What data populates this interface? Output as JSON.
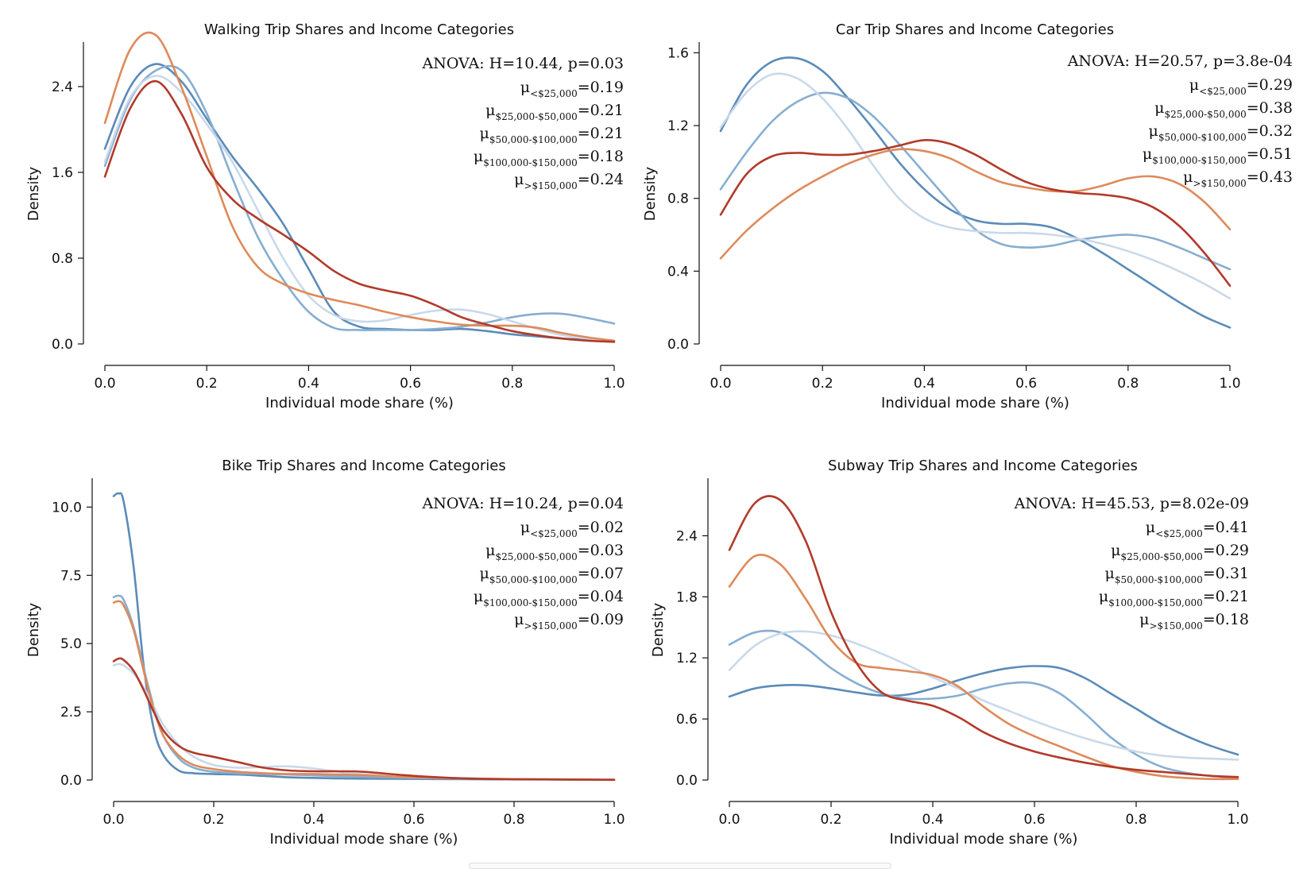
{
  "colors": {
    "lt25k": "#5b8bb8",
    "k25_50": "#86aed1",
    "k50_100": "#c9d9ea",
    "k100_150": "#de8a5a",
    "gt150k": "#b23a2a"
  },
  "chart_data": [
    {
      "type": "line",
      "title": "Walking Trip Shares and Income Categories",
      "xlabel": "Individual mode share (%)",
      "ylabel": "Density",
      "xlim": [
        0,
        1
      ],
      "ylim": [
        0,
        2.8
      ],
      "xticks": [
        "0.0",
        "0.2",
        "0.4",
        "0.6",
        "0.8",
        "1.0"
      ],
      "yticks": [
        {
          "v": 0,
          "label": "0.0"
        },
        {
          "v": 0.8,
          "label": "0.8"
        },
        {
          "v": 1.6,
          "label": "1.6"
        },
        {
          "v": 2.4,
          "label": "2.4"
        }
      ],
      "anova": "ANOVA: H=10.44, p=0.03",
      "means": [
        {
          "sub": "<$25,000",
          "value": "=0.19"
        },
        {
          "sub": "$25,000-$50,000",
          "value": "=0.21"
        },
        {
          "sub": "$50,000-$100,000",
          "value": "=0.21"
        },
        {
          "sub": "$100,000-$150,000",
          "value": "=0.18"
        },
        {
          "sub": ">$150,000",
          "value": "=0.24"
        }
      ],
      "x": [
        0,
        0.05,
        0.1,
        0.15,
        0.2,
        0.25,
        0.3,
        0.35,
        0.4,
        0.45,
        0.5,
        0.55,
        0.6,
        0.65,
        0.7,
        0.75,
        0.8,
        0.85,
        0.9,
        0.95,
        1.0
      ],
      "series": [
        {
          "name": "<$25,000",
          "color": "lt25k",
          "values": [
            1.82,
            2.4,
            2.61,
            2.45,
            2.1,
            1.75,
            1.45,
            1.12,
            0.7,
            0.3,
            0.16,
            0.14,
            0.13,
            0.13,
            0.14,
            0.12,
            0.09,
            0.07,
            0.05,
            0.04,
            0.03
          ]
        },
        {
          "name": "$25,000-$50,000",
          "color": "k25_50",
          "values": [
            1.66,
            2.28,
            2.55,
            2.55,
            2.15,
            1.55,
            1.0,
            0.6,
            0.3,
            0.15,
            0.13,
            0.13,
            0.13,
            0.14,
            0.16,
            0.2,
            0.25,
            0.28,
            0.28,
            0.24,
            0.19
          ]
        },
        {
          "name": "$50,000-$100,000",
          "color": "k50_100",
          "values": [
            1.7,
            2.3,
            2.5,
            2.35,
            2.05,
            1.7,
            1.25,
            0.8,
            0.45,
            0.27,
            0.21,
            0.22,
            0.27,
            0.31,
            0.32,
            0.28,
            0.21,
            0.14,
            0.08,
            0.05,
            0.03
          ]
        },
        {
          "name": "$100,000-$150,000",
          "color": "k100_150",
          "values": [
            2.06,
            2.75,
            2.88,
            2.4,
            1.75,
            1.1,
            0.72,
            0.56,
            0.47,
            0.41,
            0.36,
            0.3,
            0.25,
            0.21,
            0.18,
            0.17,
            0.17,
            0.15,
            0.1,
            0.06,
            0.03
          ]
        },
        {
          "name": ">$150,000",
          "color": "gt150k",
          "values": [
            1.56,
            2.2,
            2.45,
            2.15,
            1.65,
            1.35,
            1.17,
            1.02,
            0.86,
            0.68,
            0.56,
            0.5,
            0.45,
            0.36,
            0.25,
            0.18,
            0.12,
            0.08,
            0.05,
            0.03,
            0.02
          ]
        }
      ]
    },
    {
      "type": "line",
      "title": "Car Trip Shares and Income Categories",
      "xlabel": "Individual mode share (%)",
      "ylabel": "Density",
      "xlim": [
        0,
        1
      ],
      "ylim": [
        0,
        1.65
      ],
      "xticks": [
        "0.0",
        "0.2",
        "0.4",
        "0.6",
        "0.8",
        "1.0"
      ],
      "yticks": [
        {
          "v": 0,
          "label": "0.0"
        },
        {
          "v": 0.4,
          "label": "0.4"
        },
        {
          "v": 0.8,
          "label": "0.8"
        },
        {
          "v": 1.2,
          "label": "1.2"
        },
        {
          "v": 1.6,
          "label": "1.6"
        }
      ],
      "anova": "ANOVA: H=20.57, p=3.8e-04",
      "means": [
        {
          "sub": "<$25,000",
          "value": "=0.29"
        },
        {
          "sub": "$25,000-$50,000",
          "value": "=0.38"
        },
        {
          "sub": "$50,000-$100,000",
          "value": "=0.32"
        },
        {
          "sub": "$100,000-$150,000",
          "value": "=0.51"
        },
        {
          "sub": ">$150,000",
          "value": "=0.43"
        }
      ],
      "x": [
        0,
        0.05,
        0.1,
        0.15,
        0.2,
        0.25,
        0.3,
        0.35,
        0.4,
        0.45,
        0.5,
        0.55,
        0.6,
        0.65,
        0.7,
        0.75,
        0.8,
        0.85,
        0.9,
        0.95,
        1.0
      ],
      "series": [
        {
          "name": "<$25,000",
          "color": "lt25k",
          "values": [
            1.17,
            1.42,
            1.55,
            1.57,
            1.5,
            1.35,
            1.18,
            1.0,
            0.85,
            0.74,
            0.68,
            0.66,
            0.66,
            0.64,
            0.58,
            0.5,
            0.41,
            0.32,
            0.23,
            0.15,
            0.09
          ]
        },
        {
          "name": "$25,000-$50,000",
          "color": "k25_50",
          "values": [
            0.85,
            1.05,
            1.22,
            1.33,
            1.38,
            1.35,
            1.25,
            1.1,
            0.94,
            0.78,
            0.63,
            0.55,
            0.53,
            0.54,
            0.57,
            0.59,
            0.6,
            0.58,
            0.53,
            0.47,
            0.41
          ]
        },
        {
          "name": "$50,000-$100,000",
          "color": "k50_100",
          "values": [
            1.19,
            1.38,
            1.48,
            1.46,
            1.35,
            1.18,
            0.98,
            0.8,
            0.69,
            0.64,
            0.62,
            0.61,
            0.61,
            0.6,
            0.58,
            0.55,
            0.51,
            0.46,
            0.4,
            0.33,
            0.25
          ]
        },
        {
          "name": "$100,000-$150,000",
          "color": "k100_150",
          "values": [
            0.47,
            0.62,
            0.74,
            0.84,
            0.92,
            0.99,
            1.04,
            1.07,
            1.06,
            1.02,
            0.95,
            0.89,
            0.86,
            0.84,
            0.84,
            0.87,
            0.91,
            0.92,
            0.88,
            0.78,
            0.63
          ]
        },
        {
          "name": ">$150,000",
          "color": "gt150k",
          "values": [
            0.71,
            0.93,
            1.03,
            1.05,
            1.04,
            1.04,
            1.06,
            1.09,
            1.12,
            1.1,
            1.04,
            0.96,
            0.89,
            0.85,
            0.83,
            0.82,
            0.8,
            0.75,
            0.65,
            0.5,
            0.32
          ]
        }
      ]
    },
    {
      "type": "line",
      "title": "Bike Trip Shares and Income Categories",
      "xlabel": "Individual mode share (%)",
      "ylabel": "Density",
      "xlim": [
        0,
        1
      ],
      "ylim": [
        0,
        11
      ],
      "xticks": [
        "0.0",
        "0.2",
        "0.4",
        "0.6",
        "0.8",
        "1.0"
      ],
      "yticks": [
        {
          "v": 0,
          "label": "0.0"
        },
        {
          "v": 2.5,
          "label": "2.5"
        },
        {
          "v": 5,
          "label": "5.0"
        },
        {
          "v": 7.5,
          "label": "7.5"
        },
        {
          "v": 10,
          "label": "10.0"
        }
      ],
      "anova": "ANOVA: H=10.24, p=0.04",
      "means": [
        {
          "sub": "<$25,000",
          "value": "=0.02"
        },
        {
          "sub": "$25,000-$50,000",
          "value": "=0.03"
        },
        {
          "sub": "$50,000-$100,000",
          "value": "=0.07"
        },
        {
          "sub": "$100,000-$150,000",
          "value": "=0.04"
        },
        {
          "sub": ">$150,000",
          "value": "=0.09"
        }
      ],
      "x": [
        0,
        0.01,
        0.02,
        0.04,
        0.06,
        0.08,
        0.1,
        0.13,
        0.16,
        0.2,
        0.25,
        0.3,
        0.35,
        0.4,
        0.45,
        0.5,
        0.6,
        0.7,
        0.8,
        0.9,
        1.0
      ],
      "series": [
        {
          "name": "<$25,000",
          "color": "lt25k",
          "values": [
            10.4,
            10.5,
            10.2,
            7.8,
            4.2,
            1.9,
            0.9,
            0.35,
            0.25,
            0.22,
            0.2,
            0.15,
            0.1,
            0.08,
            0.06,
            0.05,
            0.04,
            0.03,
            0.02,
            0.02,
            0.01
          ]
        },
        {
          "name": "$25,000-$50,000",
          "color": "k25_50",
          "values": [
            6.7,
            6.75,
            6.6,
            5.6,
            4.1,
            2.7,
            1.6,
            0.8,
            0.45,
            0.3,
            0.25,
            0.22,
            0.2,
            0.17,
            0.14,
            0.12,
            0.08,
            0.05,
            0.03,
            0.02,
            0.01
          ]
        },
        {
          "name": "$50,000-$100,000",
          "color": "k50_100",
          "values": [
            4.2,
            4.25,
            4.2,
            3.9,
            3.4,
            2.7,
            2.0,
            1.3,
            0.85,
            0.55,
            0.45,
            0.48,
            0.5,
            0.42,
            0.3,
            0.2,
            0.1,
            0.06,
            0.03,
            0.02,
            0.01
          ]
        },
        {
          "name": "$100,000-$150,000",
          "color": "k100_150",
          "values": [
            6.5,
            6.55,
            6.4,
            5.5,
            4.0,
            2.6,
            1.6,
            0.9,
            0.55,
            0.4,
            0.3,
            0.25,
            0.22,
            0.22,
            0.2,
            0.18,
            0.1,
            0.06,
            0.03,
            0.02,
            0.01
          ]
        },
        {
          "name": ">$150,000",
          "color": "gt150k",
          "values": [
            4.35,
            4.45,
            4.4,
            4.0,
            3.3,
            2.5,
            1.8,
            1.25,
            1.0,
            0.85,
            0.65,
            0.45,
            0.35,
            0.32,
            0.32,
            0.3,
            0.15,
            0.06,
            0.03,
            0.02,
            0.01
          ]
        }
      ]
    },
    {
      "type": "line",
      "title": "Subway Trip Shares and Income Categories",
      "xlabel": "Individual mode share (%)",
      "ylabel": "Density",
      "xlim": [
        0,
        1
      ],
      "ylim": [
        0,
        2.95
      ],
      "xticks": [
        "0.0",
        "0.2",
        "0.4",
        "0.6",
        "0.8",
        "1.0"
      ],
      "yticks": [
        {
          "v": 0,
          "label": "0.0"
        },
        {
          "v": 0.6,
          "label": "0.6"
        },
        {
          "v": 1.2,
          "label": "1.2"
        },
        {
          "v": 1.8,
          "label": "1.8"
        },
        {
          "v": 2.4,
          "label": "2.4"
        }
      ],
      "anova": "ANOVA: H=45.53, p=8.02e-09",
      "means": [
        {
          "sub": "<$25,000",
          "value": "=0.41"
        },
        {
          "sub": "$25,000-$50,000",
          "value": "=0.29"
        },
        {
          "sub": "$50,000-$100,000",
          "value": "=0.31"
        },
        {
          "sub": "$100,000-$150,000",
          "value": "=0.21"
        },
        {
          "sub": ">$150,000",
          "value": "=0.18"
        }
      ],
      "x": [
        0,
        0.05,
        0.1,
        0.15,
        0.2,
        0.25,
        0.3,
        0.35,
        0.4,
        0.45,
        0.5,
        0.55,
        0.6,
        0.65,
        0.7,
        0.75,
        0.8,
        0.85,
        0.9,
        0.95,
        1.0
      ],
      "series": [
        {
          "name": "<$25,000",
          "color": "lt25k",
          "values": [
            0.82,
            0.9,
            0.93,
            0.93,
            0.9,
            0.86,
            0.83,
            0.84,
            0.9,
            0.98,
            1.05,
            1.1,
            1.12,
            1.1,
            1.0,
            0.85,
            0.7,
            0.55,
            0.43,
            0.33,
            0.25
          ]
        },
        {
          "name": "$25,000-$50,000",
          "color": "k25_50",
          "values": [
            1.33,
            1.45,
            1.45,
            1.3,
            1.1,
            0.95,
            0.85,
            0.8,
            0.8,
            0.83,
            0.9,
            0.95,
            0.95,
            0.85,
            0.65,
            0.42,
            0.25,
            0.13,
            0.07,
            0.04,
            0.02
          ]
        },
        {
          "name": "$50,000-$100,000",
          "color": "k50_100",
          "values": [
            1.08,
            1.32,
            1.44,
            1.46,
            1.42,
            1.34,
            1.24,
            1.13,
            1.01,
            0.9,
            0.78,
            0.68,
            0.58,
            0.49,
            0.41,
            0.34,
            0.28,
            0.24,
            0.22,
            0.21,
            0.2
          ]
        },
        {
          "name": "$100,000-$150,000",
          "color": "k100_150",
          "values": [
            1.9,
            2.2,
            2.12,
            1.78,
            1.38,
            1.15,
            1.1,
            1.07,
            1.03,
            0.92,
            0.72,
            0.55,
            0.43,
            0.33,
            0.23,
            0.14,
            0.08,
            0.04,
            0.02,
            0.01,
            0.01
          ]
        },
        {
          "name": ">$150,000",
          "color": "gt150k",
          "values": [
            2.26,
            2.72,
            2.75,
            2.35,
            1.65,
            1.15,
            0.86,
            0.78,
            0.73,
            0.62,
            0.47,
            0.36,
            0.28,
            0.22,
            0.17,
            0.13,
            0.1,
            0.08,
            0.06,
            0.04,
            0.03
          ]
        }
      ]
    }
  ]
}
